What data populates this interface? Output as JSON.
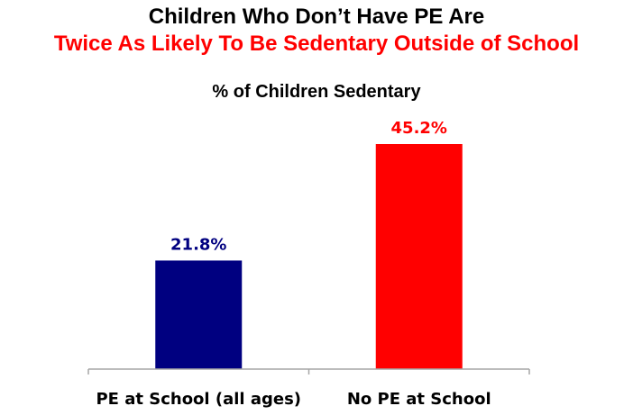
{
  "chart_data": {
    "type": "bar",
    "title": "Children Who Don’t Have PE Are",
    "subtitle": "Twice As Likely To Be Sedentary Outside of School",
    "chart_title": "% of Children Sedentary",
    "categories": [
      "PE at School (all ages)",
      "No PE at School"
    ],
    "values": [
      21.8,
      45.2
    ],
    "value_labels": [
      "21.8%",
      "45.2%"
    ],
    "colors": [
      "#000080",
      "#ff0000"
    ],
    "ylim": [
      0,
      50
    ],
    "grid": false,
    "legend": "none",
    "xlabel": "",
    "ylabel": ""
  },
  "colors": {
    "title": "#000000",
    "subtitle": "#ff0000",
    "axis": "#a6a6a6"
  }
}
